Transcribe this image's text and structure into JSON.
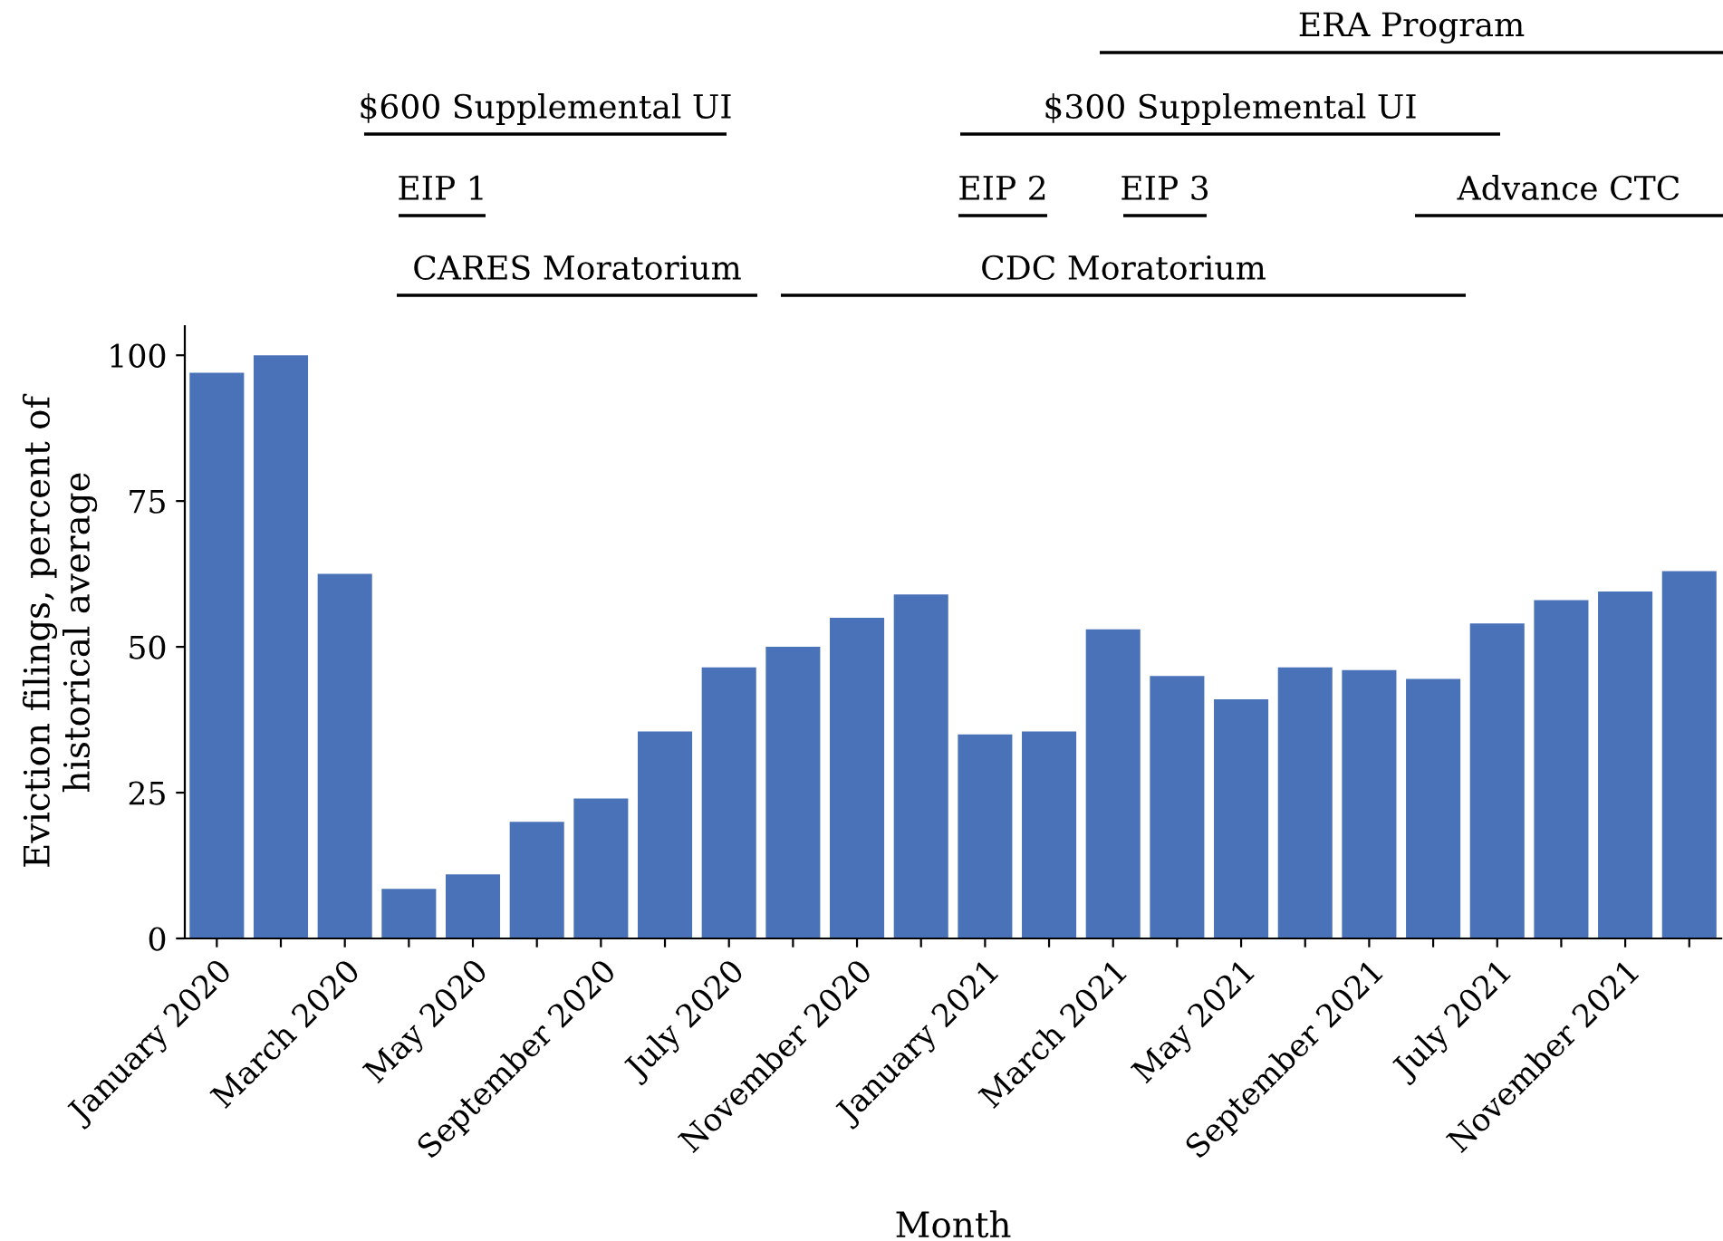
{
  "chart_data": {
    "type": "bar",
    "xlabel": "Month",
    "ylabel": "Eviction filings, percent of\nhistorical average",
    "categories": [
      "January 2020",
      null,
      "March 2020",
      null,
      "May 2020",
      null,
      "September 2020",
      null,
      "July 2020",
      null,
      "November 2020",
      null,
      "January 2021",
      null,
      "March 2021",
      null,
      "May 2021",
      null,
      "September 2021",
      null,
      "July 2021",
      null,
      "November 2021",
      null
    ],
    "values": [
      97,
      100,
      62.5,
      8.5,
      11,
      20,
      24,
      35.5,
      46.5,
      50,
      55,
      59,
      35,
      35.5,
      53,
      45,
      41,
      46.5,
      46,
      44.5,
      54,
      58,
      59.5,
      63
    ],
    "color": "#4a72b8",
    "ylim": [
      0,
      105
    ],
    "yticks": [
      0,
      25,
      50,
      75,
      100
    ],
    "grid": false,
    "legend": false,
    "annotations": [
      "CARES Moratorium",
      "CDC Moratorium",
      "EIP 1",
      "EIP 2",
      "EIP 3",
      "Advance CTC",
      "$600 Supplemental UI",
      "$300 Supplemental UI",
      "ERA Program"
    ]
  }
}
